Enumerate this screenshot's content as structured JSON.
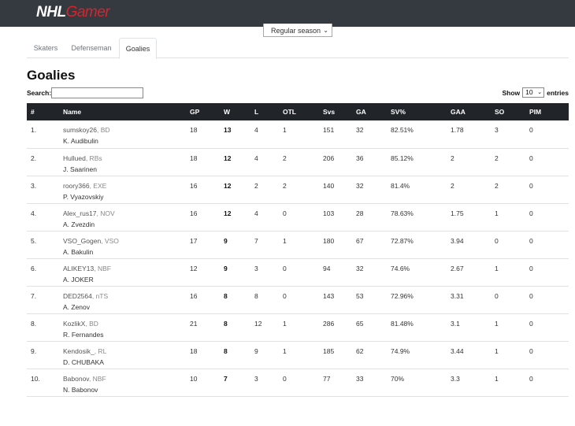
{
  "header": {
    "logo_nhl": "NHL",
    "logo_gamer": "Gamer",
    "season_select": "Regular season"
  },
  "tabs": [
    {
      "label": "Skaters",
      "active": false
    },
    {
      "label": "Defenseman",
      "active": false
    },
    {
      "label": "Goalies",
      "active": true
    }
  ],
  "page_title": "Goalies",
  "search": {
    "label": "Search:",
    "value": ""
  },
  "length": {
    "prefix": "Show",
    "value": "10",
    "suffix": "entries"
  },
  "table": {
    "columns": [
      "#",
      "Name",
      "GP",
      "W",
      "L",
      "OTL",
      "Svs",
      "GA",
      "SV%",
      "GAA",
      "SO",
      "PIM"
    ],
    "rows": [
      {
        "rank": "1.",
        "nick": "sumskoy26",
        "team": ", BD",
        "player": "K. Audibulin",
        "gp": "18",
        "w": "13",
        "l": "4",
        "otl": "1",
        "svs": "151",
        "ga": "32",
        "svp": "82.51%",
        "gaa": "1.78",
        "so": "3",
        "pim": "0"
      },
      {
        "rank": "2.",
        "nick": "Hullued",
        "team": ", RBs",
        "player": "J. Saarinen",
        "gp": "18",
        "w": "12",
        "l": "4",
        "otl": "2",
        "svs": "206",
        "ga": "36",
        "svp": "85.12%",
        "gaa": "2",
        "so": "2",
        "pim": "0"
      },
      {
        "rank": "3.",
        "nick": "roory366",
        "team": ", EXE",
        "player": "P. Vyazovskiy",
        "gp": "16",
        "w": "12",
        "l": "2",
        "otl": "2",
        "svs": "140",
        "ga": "32",
        "svp": "81.4%",
        "gaa": "2",
        "so": "2",
        "pim": "0"
      },
      {
        "rank": "4.",
        "nick": "Alex_rus17",
        "team": ", NOV",
        "player": "A. Zvezdin",
        "gp": "16",
        "w": "12",
        "l": "4",
        "otl": "0",
        "svs": "103",
        "ga": "28",
        "svp": "78.63%",
        "gaa": "1.75",
        "so": "1",
        "pim": "0"
      },
      {
        "rank": "5.",
        "nick": "VSO_Gogen",
        "team": ", VSO",
        "player": "A. Bakulin",
        "gp": "17",
        "w": "9",
        "l": "7",
        "otl": "1",
        "svs": "180",
        "ga": "67",
        "svp": "72.87%",
        "gaa": "3.94",
        "so": "0",
        "pim": "0"
      },
      {
        "rank": "6.",
        "nick": "ALIKEY13",
        "team": ", NBF",
        "player": "A. JOKER",
        "gp": "12",
        "w": "9",
        "l": "3",
        "otl": "0",
        "svs": "94",
        "ga": "32",
        "svp": "74.6%",
        "gaa": "2.67",
        "so": "1",
        "pim": "0"
      },
      {
        "rank": "7.",
        "nick": "DED2564",
        "team": ", nTS",
        "player": "A. Zenov",
        "gp": "16",
        "w": "8",
        "l": "8",
        "otl": "0",
        "svs": "143",
        "ga": "53",
        "svp": "72.96%",
        "gaa": "3.31",
        "so": "0",
        "pim": "0"
      },
      {
        "rank": "8.",
        "nick": "KozlikX",
        "team": ", BD",
        "player": "R. Fernandes",
        "gp": "21",
        "w": "8",
        "l": "12",
        "otl": "1",
        "svs": "286",
        "ga": "65",
        "svp": "81.48%",
        "gaa": "3.1",
        "so": "1",
        "pim": "0"
      },
      {
        "rank": "9.",
        "nick": "Kendosik_",
        "team": ", RL",
        "player": "D. CHUBAKA",
        "gp": "18",
        "w": "8",
        "l": "9",
        "otl": "1",
        "svs": "185",
        "ga": "62",
        "svp": "74.9%",
        "gaa": "3.44",
        "so": "1",
        "pim": "0"
      },
      {
        "rank": "10.",
        "nick": "Babonov",
        "team": ", NBF",
        "player": "N. Babonov",
        "gp": "10",
        "w": "7",
        "l": "3",
        "otl": "0",
        "svs": "77",
        "ga": "33",
        "svp": "70%",
        "gaa": "3.3",
        "so": "1",
        "pim": "0"
      }
    ]
  },
  "colors": {
    "topbar": "#343a40",
    "logo_accent": "#d9232d",
    "table_header": "#212529"
  }
}
